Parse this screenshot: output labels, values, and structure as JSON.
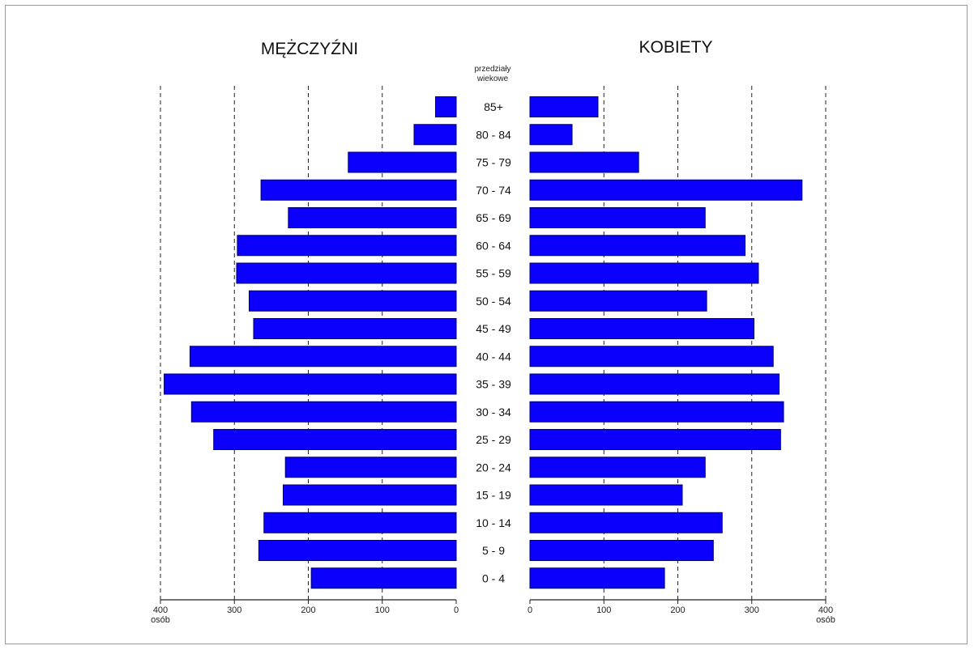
{
  "chart_data": {
    "type": "bar",
    "subtype": "population-pyramid",
    "left_title": "MĘŻCZYŹNI",
    "right_title": "KOBIETY",
    "age_header": [
      "przedziały",
      "wiekowe"
    ],
    "categories": [
      "85+",
      "80 - 84",
      "75 - 79",
      "70 - 74",
      "65 - 69",
      "60 - 64",
      "55 - 59",
      "50 - 54",
      "45 - 49",
      "40 - 44",
      "35 - 39",
      "30 - 34",
      "25 - 29",
      "20 - 24",
      "15 - 19",
      "10 - 14",
      "5 - 9",
      "0 - 4"
    ],
    "series": [
      {
        "name": "MĘŻCZYŹNI",
        "side": "left",
        "values": [
          28,
          57,
          146,
          264,
          227,
          296,
          297,
          280,
          274,
          360,
          395,
          358,
          328,
          231,
          234,
          260,
          267,
          196
        ]
      },
      {
        "name": "KOBIETY",
        "side": "right",
        "values": [
          92,
          57,
          147,
          368,
          237,
          291,
          309,
          239,
          303,
          329,
          337,
          343,
          339,
          237,
          206,
          260,
          248,
          182
        ]
      }
    ],
    "xlim": [
      0,
      400
    ],
    "x_ticks": [
      0,
      100,
      200,
      300,
      400
    ],
    "x_tick_labels_left": [
      "400",
      "300",
      "200",
      "100",
      "0"
    ],
    "x_tick_labels_right": [
      "0",
      "100",
      "200",
      "300",
      "400"
    ],
    "x_unit_label": "osób",
    "grid": "dashed vertical at 100-unit intervals",
    "bar_color": "#0a00fb"
  }
}
